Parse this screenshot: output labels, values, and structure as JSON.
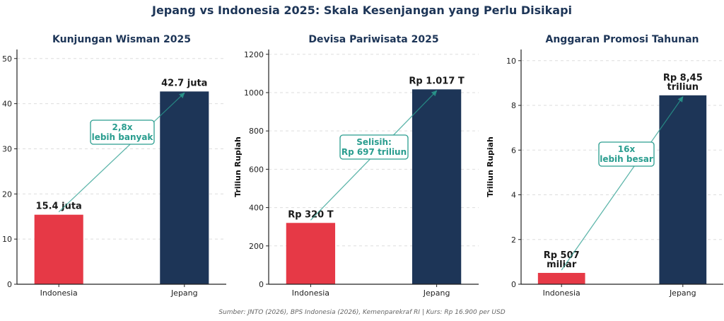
{
  "figure": {
    "title": "Jepang vs Indonesia 2025: Skala Kesenjangan yang Perlu Disikapi",
    "source": "Sumber: JNTO (2026), BPS Indonesia (2026), Kemenparekraf RI | Kurs: Rp 16.900 per USD"
  },
  "colors": {
    "indonesia": "#e63946",
    "jepang": "#1d3557",
    "annotation": "#2a9d8f"
  },
  "chart_data": [
    {
      "type": "bar",
      "title": "Kunjungan Wisman 2025",
      "ylabel": "",
      "categories": [
        "Indonesia",
        "Jepang"
      ],
      "values": [
        15.4,
        42.7
      ],
      "ylim": [
        0,
        52
      ],
      "yticks": [
        0,
        10,
        20,
        30,
        40,
        50
      ],
      "value_labels": [
        [
          "15.4 juta"
        ],
        [
          "42.7 juta"
        ]
      ],
      "annotation": [
        "2,8x",
        "lebih banyak"
      ],
      "grid": true
    },
    {
      "type": "bar",
      "title": "Devisa Pariwisata 2025",
      "ylabel": "Triliun Rupiah",
      "categories": [
        "Indonesia",
        "Jepang"
      ],
      "values": [
        320,
        1017
      ],
      "ylim": [
        0,
        1225
      ],
      "yticks": [
        0,
        200,
        400,
        600,
        800,
        1000,
        1200
      ],
      "value_labels": [
        [
          "Rp 320 T"
        ],
        [
          "Rp 1.017 T"
        ]
      ],
      "annotation": [
        "Selisih:",
        "Rp 697 triliun"
      ],
      "grid": true
    },
    {
      "type": "bar",
      "title": "Anggaran Promosi Tahunan",
      "ylabel": "Triliun Rupiah",
      "categories": [
        "Indonesia",
        "Jepang"
      ],
      "values": [
        0.507,
        8.45
      ],
      "ylim": [
        0,
        10.5
      ],
      "yticks": [
        0,
        2,
        4,
        6,
        8,
        10
      ],
      "value_labels": [
        [
          "Rp 507",
          "miliar"
        ],
        [
          "Rp 8,45",
          "triliun"
        ]
      ],
      "annotation": [
        "16x",
        "lebih besar"
      ],
      "grid": true
    }
  ]
}
